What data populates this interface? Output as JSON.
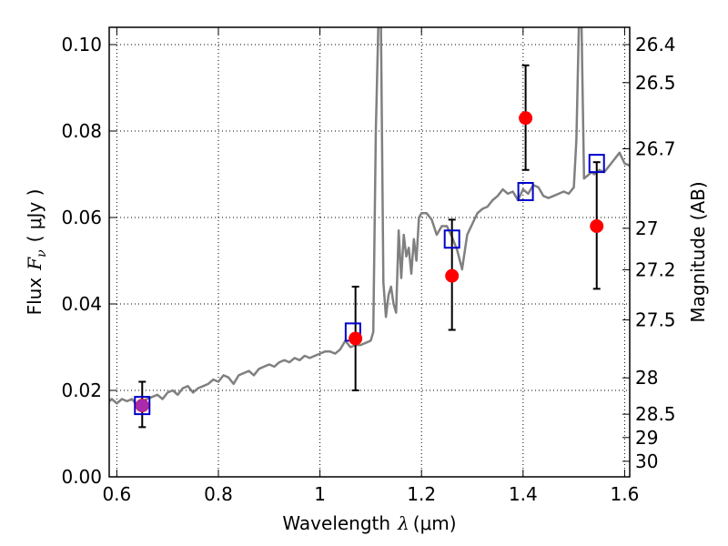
{
  "chart_data": {
    "type": "scatter",
    "title": "",
    "xlabel": {
      "prefix": "Wavelength",
      "symbol": "λ",
      "unit": "(μm)"
    },
    "ylabel": {
      "prefix": "Flux",
      "symbol": "F",
      "subscript": "ν",
      "unit": "( μJy )"
    },
    "y2label": "Magnitude (AB)",
    "xlim": [
      0.585,
      1.61
    ],
    "ylim": [
      0.0,
      0.104
    ],
    "grid": true,
    "x_ticks": [
      0.6,
      0.8,
      1.0,
      1.2,
      1.4,
      1.6
    ],
    "x_tick_labels": [
      "0.6",
      "0.8",
      "1",
      "1.2",
      "1.4",
      "1.6"
    ],
    "y_ticks": [
      0.0,
      0.02,
      0.04,
      0.06,
      0.08,
      0.1
    ],
    "y_tick_labels": [
      "0.00",
      "0.02",
      "0.04",
      "0.06",
      "0.08",
      "0.10"
    ],
    "y2_ticks": [
      {
        "label": "26.4",
        "flux": 0.1
      },
      {
        "label": "26.5",
        "flux": 0.0912
      },
      {
        "label": "26.7",
        "flux": 0.0759
      },
      {
        "label": "27",
        "flux": 0.0575
      },
      {
        "label": "27.2",
        "flux": 0.0479
      },
      {
        "label": "27.5",
        "flux": 0.0363
      },
      {
        "label": "28",
        "flux": 0.0229
      },
      {
        "label": "28.5",
        "flux": 0.0145
      },
      {
        "label": "29",
        "flux": 0.0091
      },
      {
        "label": "30",
        "flux": 0.0036
      }
    ],
    "series": [
      {
        "kind": "spectrum",
        "color": "#808080",
        "x": [
          0.585,
          0.59,
          0.6,
          0.61,
          0.62,
          0.63,
          0.64,
          0.65,
          0.66,
          0.67,
          0.68,
          0.69,
          0.7,
          0.71,
          0.72,
          0.73,
          0.74,
          0.75,
          0.76,
          0.77,
          0.78,
          0.79,
          0.8,
          0.81,
          0.82,
          0.83,
          0.84,
          0.85,
          0.86,
          0.87,
          0.88,
          0.89,
          0.9,
          0.91,
          0.92,
          0.93,
          0.94,
          0.95,
          0.96,
          0.97,
          0.98,
          0.99,
          1.0,
          1.01,
          1.02,
          1.03,
          1.04,
          1.05,
          1.06,
          1.07,
          1.08,
          1.09,
          1.1,
          1.105,
          1.11,
          1.115,
          1.12,
          1.125,
          1.13,
          1.135,
          1.14,
          1.145,
          1.15,
          1.155,
          1.16,
          1.165,
          1.17,
          1.175,
          1.18,
          1.185,
          1.19,
          1.195,
          1.2,
          1.21,
          1.22,
          1.23,
          1.24,
          1.25,
          1.26,
          1.27,
          1.28,
          1.29,
          1.3,
          1.31,
          1.32,
          1.33,
          1.34,
          1.35,
          1.36,
          1.37,
          1.38,
          1.39,
          1.4,
          1.41,
          1.42,
          1.43,
          1.44,
          1.45,
          1.46,
          1.47,
          1.48,
          1.49,
          1.5,
          1.505,
          1.51,
          1.515,
          1.52,
          1.525,
          1.53,
          1.535,
          1.54,
          1.55,
          1.56,
          1.57,
          1.58,
          1.59,
          1.6,
          1.61
        ],
        "y": [
          0.0175,
          0.018,
          0.017,
          0.018,
          0.0175,
          0.018,
          0.0165,
          0.0175,
          0.018,
          0.0185,
          0.019,
          0.018,
          0.0195,
          0.02,
          0.019,
          0.0205,
          0.021,
          0.0195,
          0.0205,
          0.021,
          0.0215,
          0.0225,
          0.022,
          0.0235,
          0.023,
          0.0215,
          0.0235,
          0.024,
          0.0245,
          0.0235,
          0.025,
          0.0255,
          0.026,
          0.0255,
          0.0265,
          0.027,
          0.0265,
          0.0275,
          0.027,
          0.028,
          0.0275,
          0.028,
          0.0285,
          0.029,
          0.029,
          0.0285,
          0.0295,
          0.0315,
          0.03,
          0.0305,
          0.0305,
          0.031,
          0.0315,
          0.0335,
          0.08,
          0.105,
          0.105,
          0.045,
          0.037,
          0.042,
          0.044,
          0.04,
          0.038,
          0.057,
          0.046,
          0.056,
          0.051,
          0.053,
          0.047,
          0.055,
          0.05,
          0.06,
          0.061,
          0.061,
          0.0595,
          0.056,
          0.058,
          0.058,
          0.0555,
          0.0525,
          0.048,
          0.056,
          0.0585,
          0.061,
          0.062,
          0.0625,
          0.064,
          0.065,
          0.0665,
          0.0655,
          0.066,
          0.064,
          0.0665,
          0.0655,
          0.0675,
          0.067,
          0.065,
          0.0645,
          0.065,
          0.0655,
          0.066,
          0.0655,
          0.067,
          0.078,
          0.105,
          0.105,
          0.069,
          0.0695,
          0.07,
          0.0705,
          0.07,
          0.071,
          0.0705,
          0.072,
          0.0735,
          0.075,
          0.0725,
          0.072
        ]
      },
      {
        "kind": "observed",
        "color": "#ff0000",
        "marker": "circle",
        "x": [
          0.65,
          1.07,
          1.26,
          1.405,
          1.545
        ],
        "y": [
          0.0165,
          0.032,
          0.0465,
          0.083,
          0.058
        ],
        "yerr_low": [
          0.0115,
          0.02,
          0.034,
          0.071,
          0.0435
        ],
        "yerr_high": [
          0.022,
          0.044,
          0.0595,
          0.0952,
          0.0728
        ]
      },
      {
        "kind": "model",
        "color": "#0000cc",
        "marker": "open-square",
        "x": [
          0.65,
          1.065,
          1.26,
          1.405,
          1.545
        ],
        "y": [
          0.0165,
          0.0335,
          0.055,
          0.066,
          0.0725
        ]
      }
    ]
  }
}
